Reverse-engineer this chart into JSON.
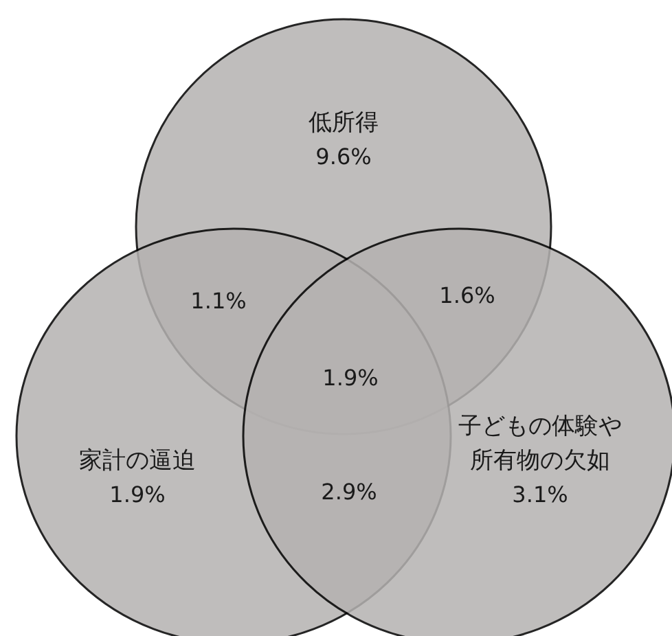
{
  "chart_data": {
    "type": "other",
    "categories": [
      "低所得",
      "家計の逼迫",
      "子どもの体験や所有物の欠如"
    ],
    "values": [
      9.6,
      1.9,
      3.1
    ],
    "value_labels": [
      "9.6%",
      "1.9%",
      "3.1%"
    ],
    "annotations": [
      "1.1%",
      "1.6%",
      "1.9%",
      "2.9%"
    ],
    "color": "#b5b2b1"
  }
}
